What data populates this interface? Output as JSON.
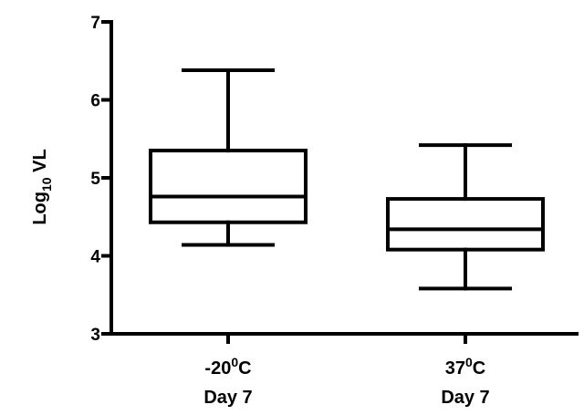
{
  "chart_data": {
    "type": "box",
    "title": "",
    "xlabel": "",
    "ylabel": "Log",
    "ylabel_subscript": "10",
    "ylabel_suffix": " VL",
    "ylim": [
      3,
      7
    ],
    "yticks": [
      3,
      4,
      5,
      6,
      7
    ],
    "categories": [
      {
        "line1_main": "-20",
        "line1_sup": "0",
        "line1_end": "C",
        "line2": "Day 7"
      },
      {
        "line1_main": "37",
        "line1_sup": "0",
        "line1_end": "C",
        "line2": "Day 7"
      }
    ],
    "boxes": [
      {
        "min": 4.14,
        "q1": 4.43,
        "median": 4.76,
        "q3": 5.35,
        "max": 6.38
      },
      {
        "min": 3.58,
        "q1": 4.08,
        "median": 4.34,
        "q3": 4.73,
        "max": 5.42
      }
    ],
    "grid": false,
    "legend": "none"
  }
}
